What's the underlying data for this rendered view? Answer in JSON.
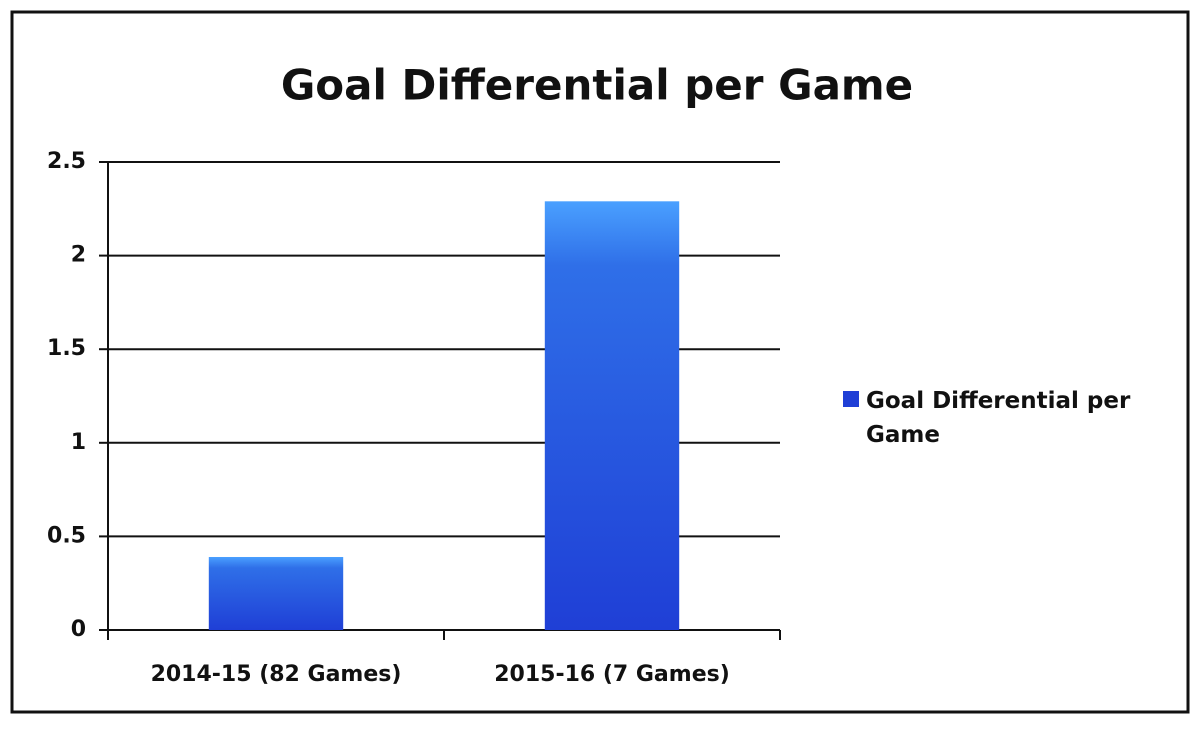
{
  "chart_data": {
    "type": "bar",
    "title": "Goal Differential per Game",
    "categories": [
      "2014-15 (82 Games)",
      "2015-16 (7 Games)"
    ],
    "series": [
      {
        "name": "Goal Differential per Game",
        "color": "#1f3fd6",
        "values": [
          0.39,
          2.29
        ]
      }
    ],
    "ylim": [
      0,
      2.5
    ],
    "yticks": [
      0,
      0.5,
      1,
      1.5,
      2,
      2.5
    ],
    "grid": true,
    "legend": "right"
  }
}
